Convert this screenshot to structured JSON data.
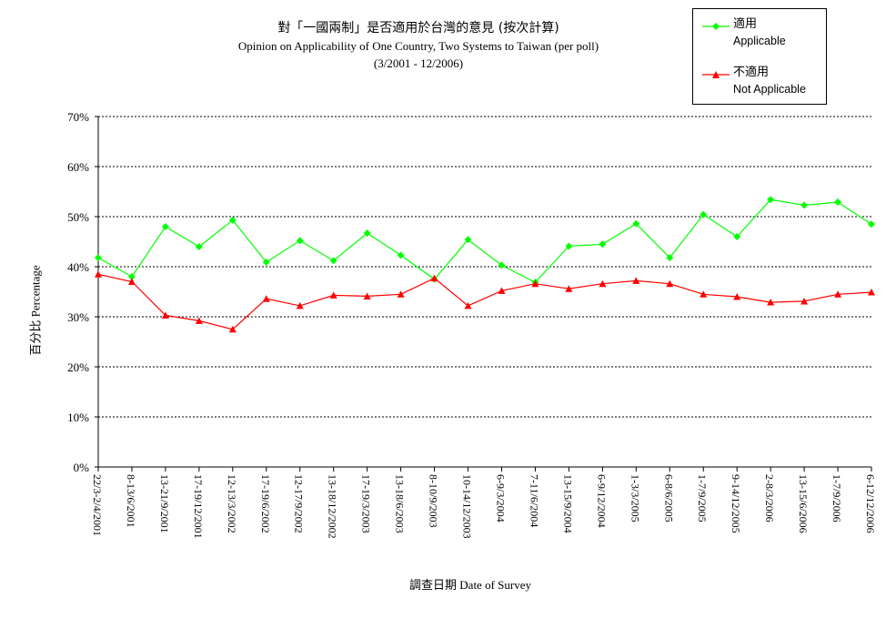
{
  "chart_data": {
    "type": "line",
    "title": "對「一國兩制」是否適用於台灣的意見 (按次計算)",
    "subtitle": "Opinion on Applicability of One Country, Two Systems to Taiwan (per poll)",
    "period": "(3/2001 - 12/2006)",
    "ylabel_cjk": "百分比",
    "ylabel_en": "Percentage",
    "xlabel_cjk": "調查日期",
    "xlabel_en": "Date of Survey",
    "ylim": [
      0,
      70
    ],
    "yticks": [
      "0%",
      "10%",
      "20%",
      "30%",
      "40%",
      "50%",
      "60%",
      "70%"
    ],
    "grid": true,
    "legend_position": "top-right",
    "categories": [
      "22/3-2/4/2001",
      "8-13/6/2001",
      "13-21/9/2001",
      "17-19/12/2001",
      "12-13/3/2002",
      "17-19/6/2002",
      "12-17/9/2002",
      "13-18/12/2002",
      "17-19/3/2003",
      "13-18/6/2003",
      "8-10/9/2003",
      "10-14/12/2003",
      "6-9/3/2004",
      "7-11/6/2004",
      "13-15/9/2004",
      "6-9/12/2004",
      "1-3/3/2005",
      "6-8/6/2005",
      "1-7/9/2005",
      "9-14/12/2005",
      "2-8/3/2006",
      "13-15/6/2006",
      "1-7/9/2006",
      "6-12/12/2006"
    ],
    "series": [
      {
        "name": "適用",
        "name_en": "Applicable",
        "color": "#00ff00",
        "marker": "diamond",
        "values": [
          41.8,
          38.0,
          48.0,
          44.0,
          49.3,
          40.9,
          45.2,
          41.2,
          46.7,
          42.3,
          37.5,
          45.4,
          40.3,
          36.9,
          44.1,
          44.5,
          48.6,
          41.8,
          50.4,
          46.0,
          53.4,
          52.3,
          52.9,
          48.5
        ]
      },
      {
        "name": "不適用",
        "name_en": "Not Applicable",
        "color": "#ff0000",
        "marker": "triangle",
        "values": [
          38.5,
          37.0,
          30.3,
          29.2,
          27.5,
          33.6,
          32.2,
          34.3,
          34.1,
          34.5,
          37.7,
          32.2,
          35.2,
          36.6,
          35.6,
          36.6,
          37.2,
          36.6,
          34.5,
          34.0,
          32.9,
          33.1,
          34.5,
          34.9
        ]
      }
    ]
  }
}
